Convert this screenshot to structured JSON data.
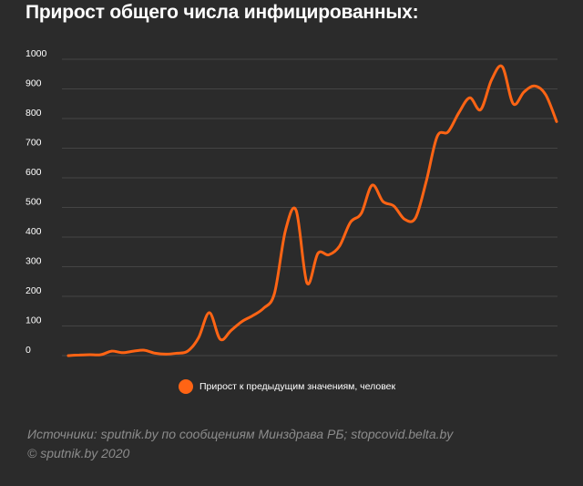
{
  "title": "Прирост общего числа инфицированных:",
  "chart_data": {
    "type": "line",
    "title": "Прирост общего числа инфицированных:",
    "xlabel": "",
    "ylabel": "",
    "ylim": [
      0,
      1000
    ],
    "yticks": [
      0,
      100,
      200,
      300,
      400,
      500,
      600,
      700,
      800,
      900,
      1000
    ],
    "grid": true,
    "legend_position": "bottom",
    "series": [
      {
        "name": "Прирост к предыдущим значениям, человек",
        "color": "#ff6414",
        "values": [
          0,
          2,
          3,
          3,
          15,
          10,
          15,
          18,
          8,
          5,
          8,
          15,
          60,
          145,
          55,
          85,
          115,
          135,
          160,
          210,
          420,
          490,
          245,
          345,
          340,
          370,
          450,
          480,
          575,
          520,
          505,
          460,
          465,
          590,
          740,
          755,
          820,
          870,
          830,
          930,
          975,
          850,
          890,
          910,
          880,
          790
        ]
      }
    ]
  },
  "legend": {
    "label": "Прирост к предыдущим значениям, человек",
    "color": "#ff6414"
  },
  "source": {
    "line1": "Источники: sputnik.by по сообщениям Минздрава РБ; stopcovid.belta.by",
    "line2": "© sputnik.by 2020"
  }
}
